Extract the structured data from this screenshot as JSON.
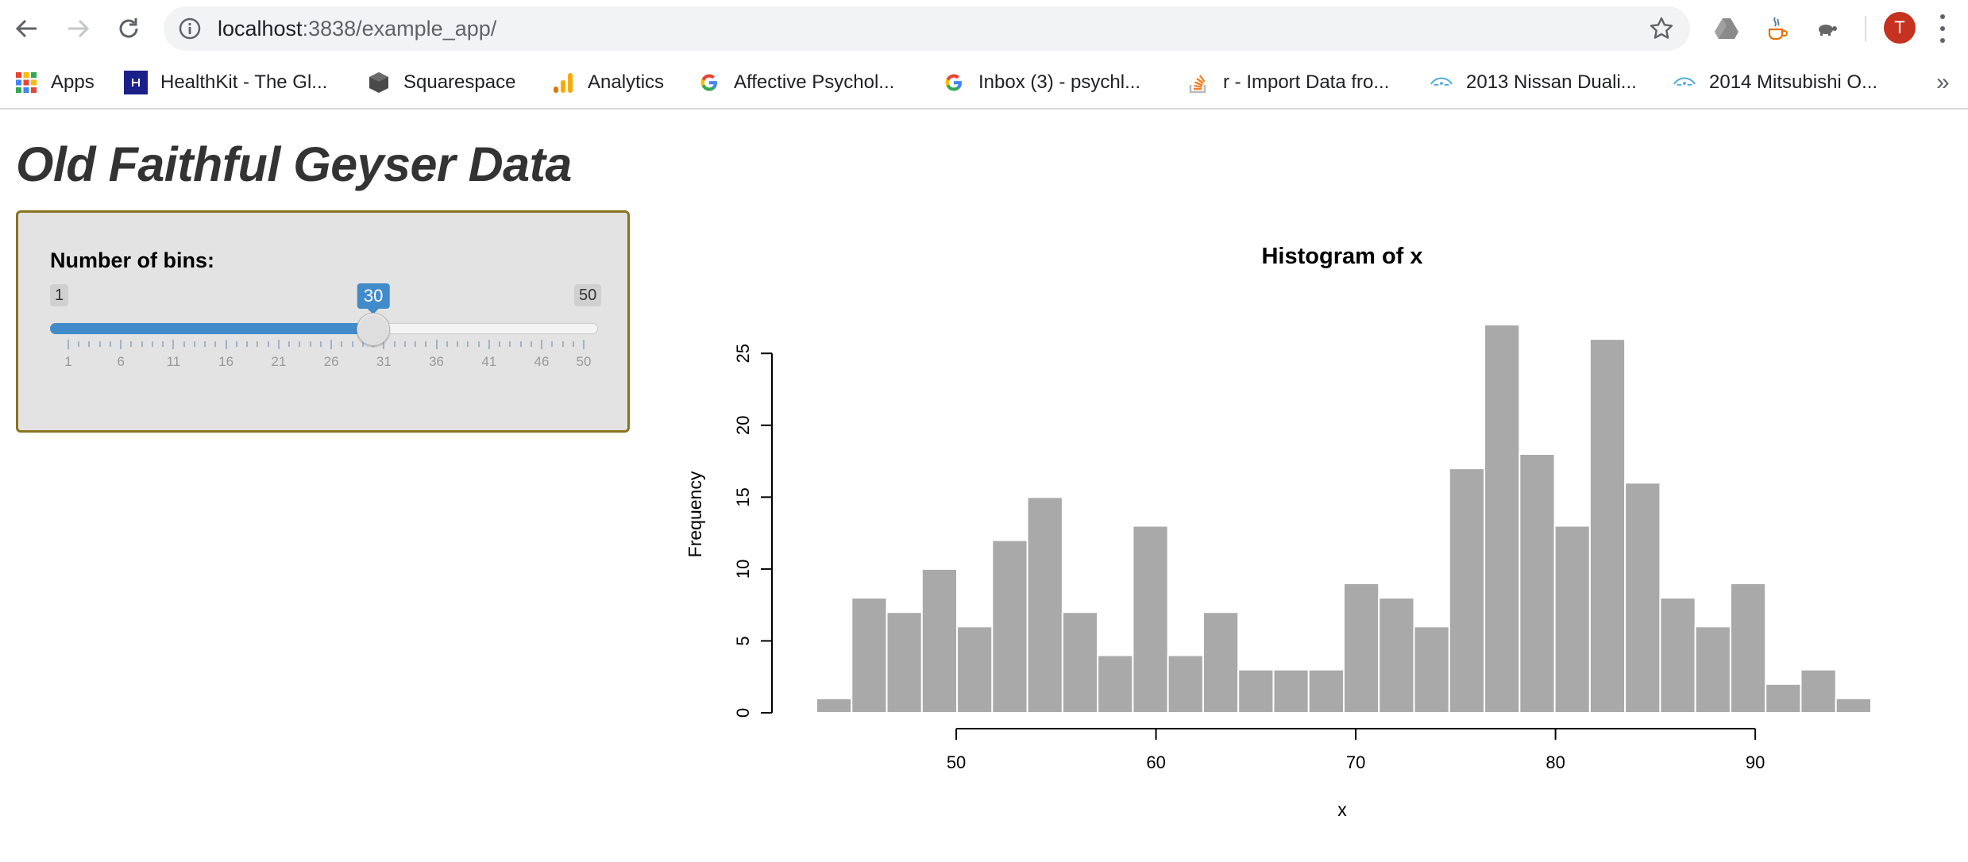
{
  "browser": {
    "url_host": "localhost",
    "url_path": ":3838/example_app/",
    "avatar_initial": "T",
    "bookmarks": [
      {
        "label": "Apps",
        "icon": "apps-grid-icon"
      },
      {
        "label": "HealthKit - The Gl...",
        "icon": "healthkit-icon"
      },
      {
        "label": "Squarespace",
        "icon": "squarespace-icon"
      },
      {
        "label": "Analytics",
        "icon": "analytics-icon"
      },
      {
        "label": "Affective Psychol...",
        "icon": "google-icon"
      },
      {
        "label": "Inbox (3) - psychl...",
        "icon": "google-icon"
      },
      {
        "label": "r - Import Data fro...",
        "icon": "stackoverflow-icon"
      },
      {
        "label": "2013 Nissan Duali...",
        "icon": "car-icon"
      },
      {
        "label": "2014 Mitsubishi O...",
        "icon": "car-icon"
      }
    ],
    "overflow": "»"
  },
  "page": {
    "title": "Old Faithful Geyser Data"
  },
  "slider": {
    "label": "Number of bins:",
    "min": 1,
    "max": 50,
    "value": 30,
    "min_label": "1",
    "max_label": "50",
    "value_label": "30",
    "tick_labels": [
      "1",
      "6",
      "11",
      "16",
      "21",
      "26",
      "31",
      "36",
      "41",
      "46",
      "50"
    ]
  },
  "chart_data": {
    "type": "bar",
    "title": "Histogram of x",
    "xlabel": "x",
    "ylabel": "Frequency",
    "bin_edges": [
      43,
      44.76,
      46.52,
      48.28,
      50.04,
      51.8,
      53.56,
      55.32,
      57.08,
      58.84,
      60.6,
      62.36,
      64.12,
      65.88,
      67.64,
      69.4,
      71.16,
      72.92,
      74.68,
      76.44,
      78.2,
      79.96,
      81.72,
      83.48,
      85.24,
      87,
      88.76,
      90.52,
      92.28,
      94.04,
      95.8
    ],
    "values": [
      1,
      8,
      7,
      10,
      6,
      12,
      15,
      7,
      4,
      13,
      4,
      7,
      3,
      3,
      3,
      9,
      8,
      6,
      17,
      27,
      18,
      13,
      26,
      16,
      8,
      6,
      9,
      2,
      3,
      1
    ],
    "x_ticks": [
      50,
      60,
      70,
      80,
      90
    ],
    "y_ticks": [
      0,
      5,
      10,
      15,
      20,
      25
    ],
    "xlim": [
      43,
      95.8
    ],
    "ylim": [
      0,
      27
    ],
    "bar_color": "#a9a9a9",
    "bar_border": "#ffffff",
    "grid": false
  }
}
